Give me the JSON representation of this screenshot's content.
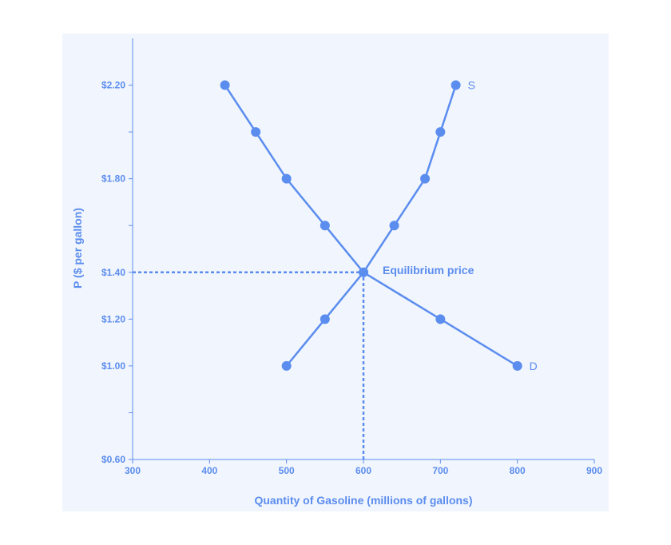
{
  "colors": {
    "accent": "#5b8def",
    "panel_background": "#f1f5fd",
    "page_background": "#ffffff"
  },
  "chart_data": {
    "type": "line",
    "title": "",
    "xlabel": "Quantity of Gasoline (millions of gallons)",
    "ylabel": "P ($ per gallon)",
    "xlim": [
      300,
      900
    ],
    "ylim": [
      0.6,
      2.4
    ],
    "x_ticks": [
      300,
      400,
      500,
      600,
      700,
      800,
      900
    ],
    "x_tick_labels": [
      "300",
      "400",
      "500",
      "600",
      "700",
      "800",
      "900"
    ],
    "y_ticks": [
      0.6,
      0.8,
      1.0,
      1.2,
      1.4,
      1.6,
      1.8,
      2.0,
      2.2
    ],
    "y_tick_labels": [
      "$0.60",
      "",
      "$1.00",
      "$1.20",
      "$1.40",
      "",
      "$1.80",
      "",
      "$2.20"
    ],
    "grid": false,
    "series": [
      {
        "name": "D",
        "x": [
          420,
          460,
          500,
          550,
          600,
          700,
          800
        ],
        "y": [
          2.2,
          2.0,
          1.8,
          1.6,
          1.4,
          1.2,
          1.0
        ]
      },
      {
        "name": "S",
        "x": [
          500,
          550,
          600,
          640,
          680,
          700,
          720
        ],
        "y": [
          1.0,
          1.2,
          1.4,
          1.6,
          1.8,
          2.0,
          2.2
        ]
      }
    ],
    "annotations": [
      {
        "text": "Equilibrium price",
        "x": 600,
        "y": 1.4
      }
    ],
    "reference_lines": [
      {
        "type": "horizontal-dotted",
        "y": 1.4,
        "from_x": 300,
        "to_x": 600
      },
      {
        "type": "vertical-dotted",
        "x": 600,
        "from_y": 0.6,
        "to_y": 1.4
      }
    ]
  }
}
